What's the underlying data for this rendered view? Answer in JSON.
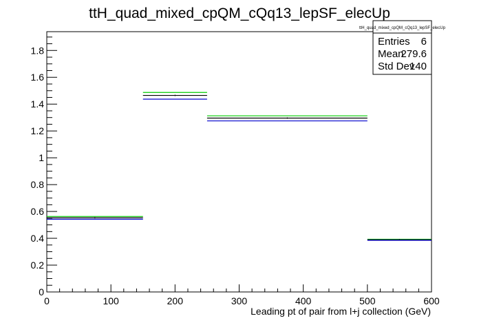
{
  "chart_data": {
    "type": "histogram",
    "title": "ttH_quad_mixed_cpQM_cQq13_lepSF_elecUp",
    "xlabel": "Leading pt of pair from l+j collection (GeV)",
    "ylabel": "",
    "xlim": [
      0,
      600
    ],
    "ylim": [
      0,
      1.94
    ],
    "x_ticks": [
      0,
      100,
      200,
      300,
      400,
      500,
      600
    ],
    "y_ticks": [
      0,
      0.2,
      0.4,
      0.6,
      0.8,
      1,
      1.2,
      1.4,
      1.6,
      1.8
    ],
    "bins": [
      {
        "low": 0,
        "high": 150
      },
      {
        "low": 150,
        "high": 250
      },
      {
        "low": 250,
        "high": 500
      },
      {
        "low": 500,
        "high": 600
      }
    ],
    "series": [
      {
        "color": "#00cc00",
        "values": [
          0.563,
          1.487,
          1.313,
          0.393
        ]
      },
      {
        "color": "#000000",
        "values": [
          0.553,
          1.465,
          1.296,
          0.389
        ]
      },
      {
        "color": "#0000cc",
        "values": [
          0.542,
          1.437,
          1.275,
          0.385
        ]
      }
    ],
    "grid": false,
    "stats": {
      "title": "ttH_quad_mixed_cpQM_cQq13_lepSF_elecUp",
      "rows": [
        {
          "label": "Entries",
          "value": "6"
        },
        {
          "label": "Mean",
          "value": "279.6"
        },
        {
          "label": "Std Dev",
          "value": "140"
        }
      ]
    }
  }
}
